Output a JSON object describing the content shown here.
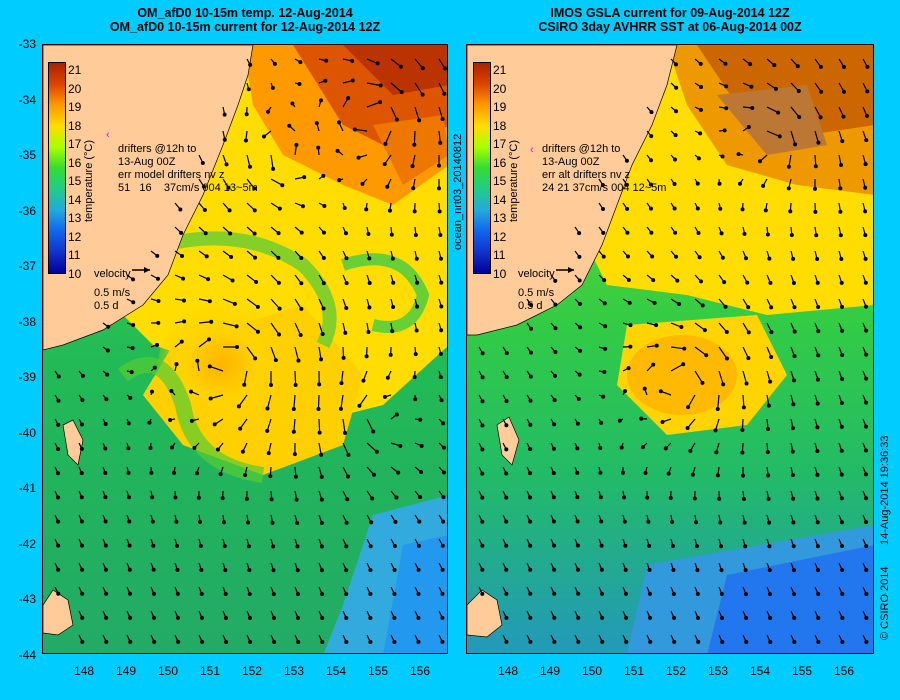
{
  "left": {
    "title_line1": "OM_afD0 10-15m temp. 12-Aug-2014",
    "title_line2": "OM_afD0 10-15m current for 12-Aug-2014 12Z",
    "drifters_line1": "drifters @12h to",
    "drifters_line2": "13-Aug 00Z",
    "drifters_line3": "err model drifters nv z",
    "drifters_line4": "51   16    37cm/s 004 13~5m",
    "velocity_label": "velocity",
    "velocity_speed": "0.5 m/s",
    "velocity_time": "0.5 d"
  },
  "right": {
    "title_line1": "IMOS GSLA current for 09-Aug-2014 12Z",
    "title_line2": "CSIRO 3day AVHRR SST at 06-Aug-2014 00Z",
    "drifters_line1": "drifters @12h to",
    "drifters_line2": "13-Aug 00Z",
    "drifters_line3": "err alt drifters nv z",
    "drifters_line4": "24 21 37cm/s 004 12~5m",
    "velocity_label": "velocity",
    "velocity_speed": "0.5 m/s",
    "velocity_time": "0.5 d"
  },
  "colorbar": {
    "title": "temperature (°C)",
    "ticks": [
      "21",
      "20",
      "19",
      "18",
      "17",
      "16",
      "15",
      "14",
      "13",
      "12",
      "11",
      "10"
    ]
  },
  "y_ticks": [
    "-33",
    "-34",
    "-35",
    "-36",
    "-37",
    "-38",
    "-39",
    "-40",
    "-41",
    "-42",
    "-43",
    "-44"
  ],
  "x_ticks": [
    "148",
    "149",
    "150",
    "151",
    "152",
    "153",
    "154",
    "155",
    "156"
  ],
  "side_label": "ocean_nrt03_20140812",
  "credit_date": "14-Aug-2014 19:36:33",
  "credit": "© CSIRO 2014",
  "colors": {
    "background": "#00ccff",
    "land": "#ffcc99",
    "magenta": "#e000e0"
  }
}
